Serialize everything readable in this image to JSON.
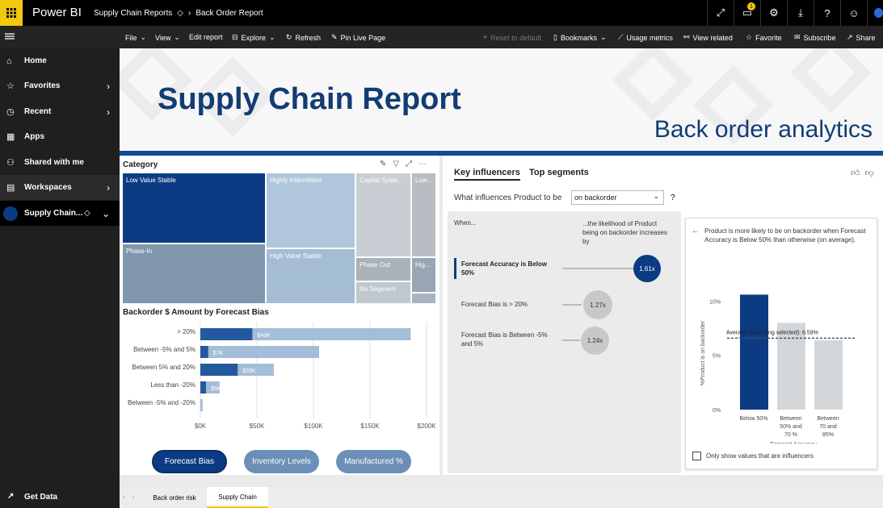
{
  "app": {
    "brand": "Power BI",
    "workspace": "Supply Chain Reports",
    "report": "Back Order Report",
    "notif_count": "1"
  },
  "cmd": {
    "file": "File",
    "view": "View",
    "edit": "Edit report",
    "explore": "Explore",
    "refresh": "Refresh",
    "pin": "Pin Live Page",
    "reset": "Reset to default",
    "bookmarks": "Bookmarks",
    "usage": "Usage metrics",
    "related": "View related",
    "favorite": "Favorite",
    "subscribe": "Subscribe",
    "share": "Share"
  },
  "nav": {
    "home": "Home",
    "favorites": "Favorites",
    "recent": "Recent",
    "apps": "Apps",
    "shared": "Shared with me",
    "workspaces": "Workspaces",
    "current": "Supply Chain...",
    "get_data": "Get Data"
  },
  "banner": {
    "title": "Supply Chain Report",
    "subtitle": "Back order analytics"
  },
  "treemap": {
    "title": "Category",
    "cells": {
      "lvs": "Low Value Stable",
      "hi": "Highly Intermittent",
      "cap": "Capital Syste...",
      "low": "Low...",
      "phasein": "Phase-In",
      "hvs": "High Value Stable",
      "phaseout": "Phase Out",
      "hig": "Hig...",
      "noseg": "No Segment"
    }
  },
  "chart_data": {
    "type": "bar",
    "title": "Backorder $ Amount by Forecast Bias",
    "categories": [
      "> 20%",
      "Between -5% and 5%",
      "Between 5% and 20%",
      "Less than -20%",
      "Between -5% and -20%"
    ],
    "series": [
      {
        "values": [
          46,
          7,
          33,
          5,
          0
        ]
      }
    ],
    "data_labels": [
      "$46K",
      "$7K",
      "$33K",
      "$5K",
      "$0K"
    ],
    "x_ticks": [
      "$0K",
      "$50K",
      "$100K",
      "$150K",
      "$200K"
    ],
    "xlim": [
      0,
      200
    ],
    "highlight_values": [
      46,
      7,
      33,
      5,
      0
    ],
    "total_values": [
      186,
      105,
      65,
      17,
      2
    ]
  },
  "pills": {
    "bias": "Forecast Bias",
    "inventory": "Inventory Levels",
    "manufactured": "Manufactured %"
  },
  "ki": {
    "tab1": "Key influencers",
    "tab2": "Top segments",
    "question": "What influences Product to be",
    "dropdown": "on backorder",
    "q_mark": "?",
    "when": "When...",
    "likelihood": "...the likelihood of Product being on backorder increases by",
    "items": [
      {
        "label": "Forecast Accuracy is Below 50%",
        "value": "1.61x"
      },
      {
        "label": "Forecast Bias is > 20%",
        "value": "1.27x"
      },
      {
        "label": "Forecast Bias is Between -5% and 5%",
        "value": "1.24x"
      }
    ],
    "detail": "Product is more likely to be on backorder when Forecast Accuracy is Below 50% than otherwise (on average).",
    "ylabel": "%Product is on backorder",
    "yticks": [
      "10%",
      "5%",
      "0%"
    ],
    "avg": "Average (excluding selected): 6.59%",
    "bars": [
      {
        "label": "Below 50%",
        "value": 10.6
      },
      {
        "label": "Between 50% and 70 %",
        "value": 8.0
      },
      {
        "label": "Between 70 and 85%",
        "value": 6.4
      }
    ],
    "xaxis": "Forecast Accuracy",
    "checkbox": "Only show values that are influencers"
  },
  "tabs": {
    "t1": "Back order risk",
    "t2": "Supply Chain"
  }
}
